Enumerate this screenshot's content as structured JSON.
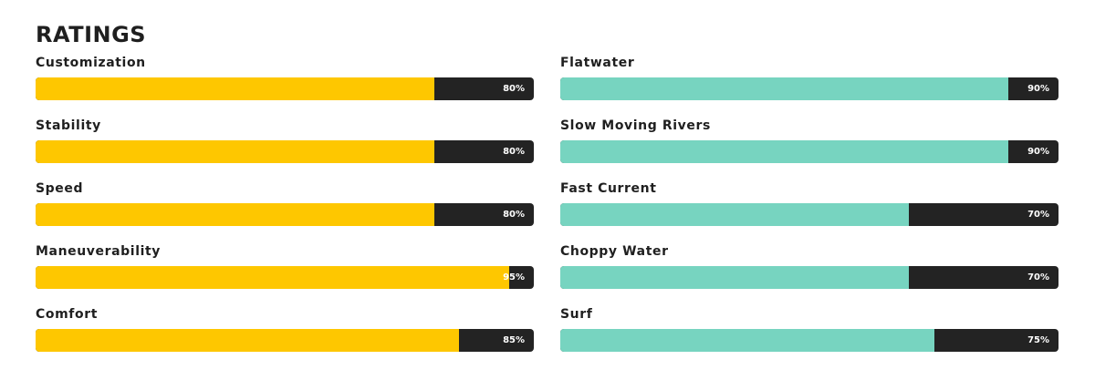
{
  "title": "RATINGS",
  "colors": {
    "left_fill": "#fec700",
    "right_fill": "#77d4c0",
    "track": "#232323"
  },
  "left": [
    {
      "label": "Customization",
      "value_text": "80%",
      "fraction": 0.8
    },
    {
      "label": "Stability",
      "value_text": "80%",
      "fraction": 0.8
    },
    {
      "label": "Speed",
      "value_text": "80%",
      "fraction": 0.8
    },
    {
      "label": "Maneuverability",
      "value_text": "95%",
      "fraction": 0.95
    },
    {
      "label": "Comfort",
      "value_text": "85%",
      "fraction": 0.85
    }
  ],
  "right": [
    {
      "label": "Flatwater",
      "value_text": "90%",
      "fraction": 0.9
    },
    {
      "label": "Slow Moving Rivers",
      "value_text": "90%",
      "fraction": 0.9
    },
    {
      "label": "Fast Current",
      "value_text": "70%",
      "fraction": 0.7
    },
    {
      "label": "Choppy Water",
      "value_text": "70%",
      "fraction": 0.7
    },
    {
      "label": "Surf",
      "value_text": "75%",
      "fraction": 0.75
    }
  ]
}
